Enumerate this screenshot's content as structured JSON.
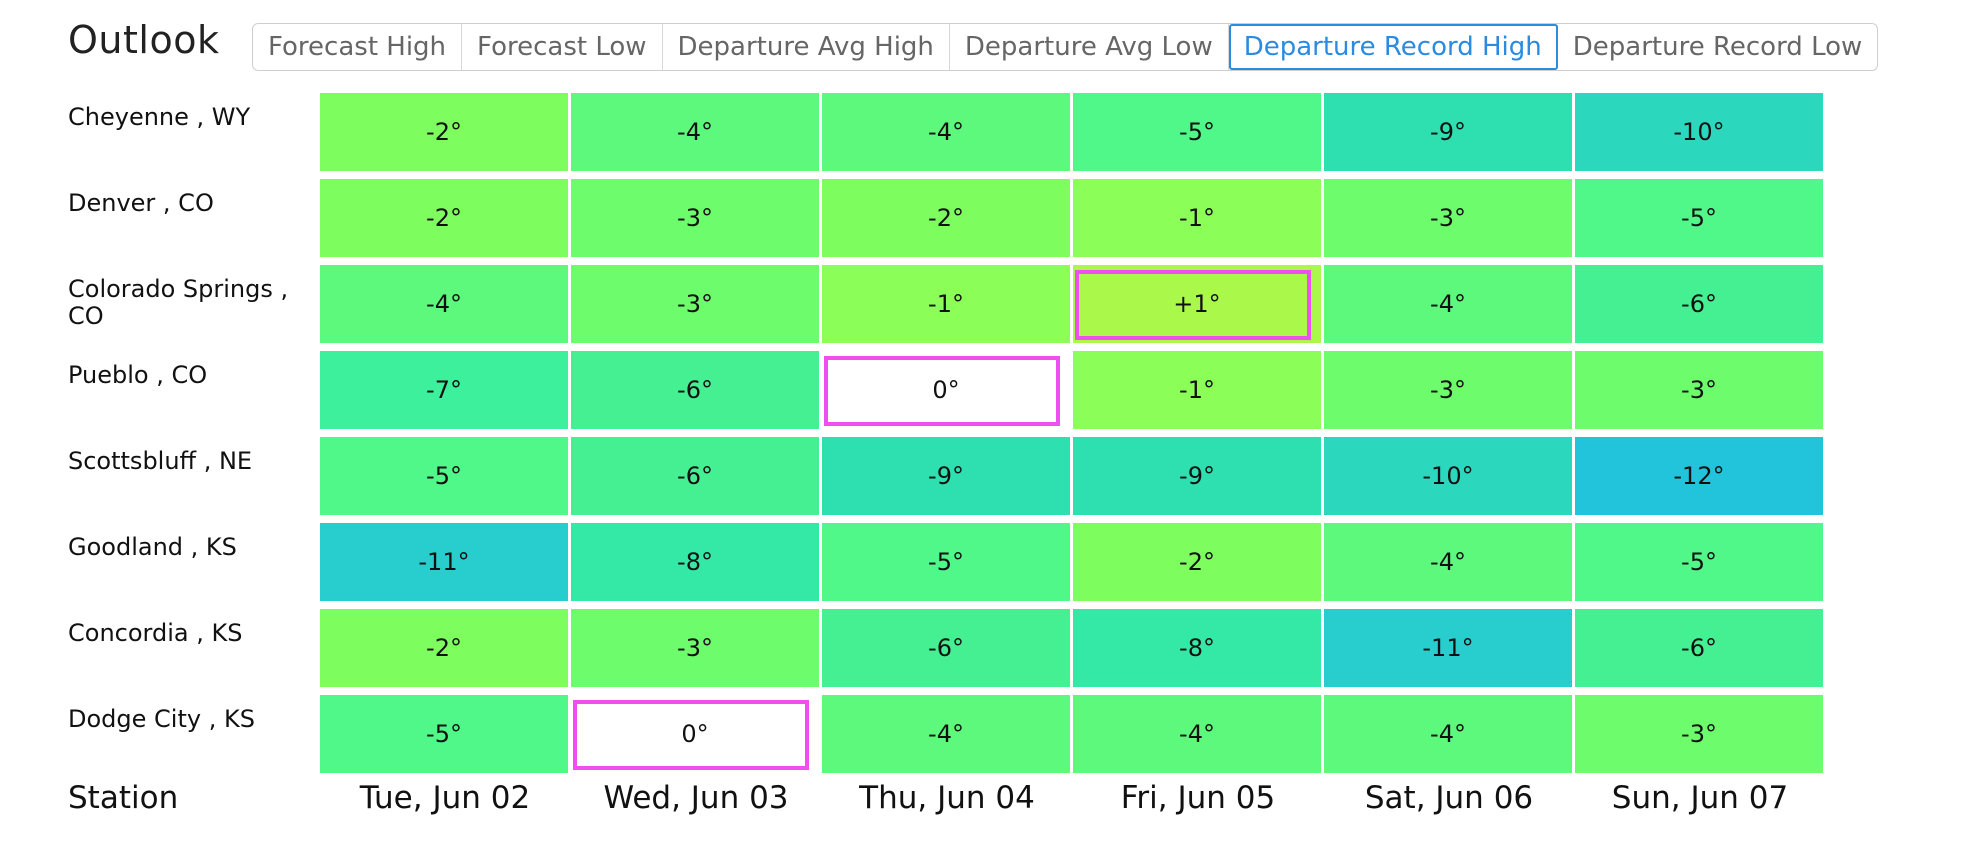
{
  "title": "Outlook",
  "tabs": [
    {
      "label": "Forecast High",
      "active": false
    },
    {
      "label": "Forecast Low",
      "active": false
    },
    {
      "label": "Departure Avg High",
      "active": false
    },
    {
      "label": "Departure Avg Low",
      "active": false
    },
    {
      "label": "Departure Record High",
      "active": true
    },
    {
      "label": "Departure Record Low",
      "active": false
    }
  ],
  "footer": {
    "station_label": "Station",
    "days": [
      "Tue, Jun 02",
      "Wed, Jun 03",
      "Thu, Jun 04",
      "Fri, Jun 05",
      "Sat, Jun 06",
      "Sun, Jun 07"
    ]
  },
  "rows": [
    {
      "station": "Cheyenne , WY",
      "cells": [
        {
          "value": "-2°",
          "color": "#7dfe5e"
        },
        {
          "value": "-4°",
          "color": "#5cf97d"
        },
        {
          "value": "-4°",
          "color": "#5cf97d"
        },
        {
          "value": "-5°",
          "color": "#4ff888"
        },
        {
          "value": "-9°",
          "color": "#2ee0b0"
        },
        {
          "value": "-10°",
          "color": "#2bd8be"
        }
      ]
    },
    {
      "station": "Denver , CO",
      "cells": [
        {
          "value": "-2°",
          "color": "#7dfe5e"
        },
        {
          "value": "-3°",
          "color": "#6dfc6c"
        },
        {
          "value": "-2°",
          "color": "#7dfe5e"
        },
        {
          "value": "-1°",
          "color": "#8cfe58"
        },
        {
          "value": "-3°",
          "color": "#6dfc6c"
        },
        {
          "value": "-5°",
          "color": "#4ff888"
        }
      ]
    },
    {
      "station": "Colorado Springs , CO",
      "cells": [
        {
          "value": "-4°",
          "color": "#5cf97d"
        },
        {
          "value": "-3°",
          "color": "#6dfc6c"
        },
        {
          "value": "-1°",
          "color": "#8cfe58"
        },
        {
          "value": "+1°",
          "color": "#aaf84a",
          "flagged": true
        },
        {
          "value": "-4°",
          "color": "#5cf97d"
        },
        {
          "value": "-6°",
          "color": "#45f092"
        }
      ]
    },
    {
      "station": "Pueblo , CO",
      "cells": [
        {
          "value": "-7°",
          "color": "#3df09c"
        },
        {
          "value": "-6°",
          "color": "#45f092"
        },
        {
          "value": "0°",
          "color": "#ffffff",
          "flagged": true
        },
        {
          "value": "-1°",
          "color": "#8cfe58"
        },
        {
          "value": "-3°",
          "color": "#6dfc6c"
        },
        {
          "value": "-3°",
          "color": "#6dfc6c"
        }
      ]
    },
    {
      "station": "Scottsbluff , NE",
      "cells": [
        {
          "value": "-5°",
          "color": "#4ff888"
        },
        {
          "value": "-6°",
          "color": "#45f092"
        },
        {
          "value": "-9°",
          "color": "#2ee0b0"
        },
        {
          "value": "-9°",
          "color": "#2ee0b0"
        },
        {
          "value": "-10°",
          "color": "#2bd8be"
        },
        {
          "value": "-12°",
          "color": "#22c4dc"
        }
      ]
    },
    {
      "station": "Goodland , KS",
      "cells": [
        {
          "value": "-11°",
          "color": "#27cecd"
        },
        {
          "value": "-8°",
          "color": "#34e8a6"
        },
        {
          "value": "-5°",
          "color": "#4ff888"
        },
        {
          "value": "-2°",
          "color": "#7dfe5e"
        },
        {
          "value": "-4°",
          "color": "#5cf97d"
        },
        {
          "value": "-5°",
          "color": "#4ff888"
        }
      ]
    },
    {
      "station": "Concordia , KS",
      "cells": [
        {
          "value": "-2°",
          "color": "#7dfe5e"
        },
        {
          "value": "-3°",
          "color": "#6dfc6c"
        },
        {
          "value": "-6°",
          "color": "#45f092"
        },
        {
          "value": "-8°",
          "color": "#34e8a6"
        },
        {
          "value": "-11°",
          "color": "#27cecd"
        },
        {
          "value": "-6°",
          "color": "#45f092"
        }
      ]
    },
    {
      "station": "Dodge City , KS",
      "cells": [
        {
          "value": "-5°",
          "color": "#4ff888"
        },
        {
          "value": "0°",
          "color": "#ffffff",
          "flagged": true
        },
        {
          "value": "-4°",
          "color": "#5cf97d"
        },
        {
          "value": "-4°",
          "color": "#5cf97d"
        },
        {
          "value": "-4°",
          "color": "#5cf97d"
        },
        {
          "value": "-3°",
          "color": "#6dfc6c"
        }
      ]
    }
  ]
}
